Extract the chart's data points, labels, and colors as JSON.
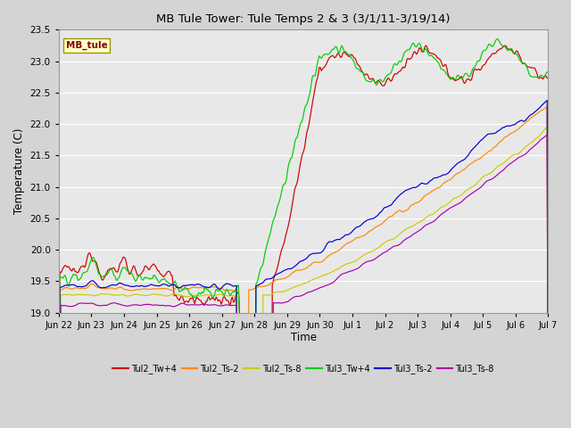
{
  "title": "MB Tule Tower: Tule Temps 2 & 3 (3/1/11-3/19/14)",
  "xlabel": "Time",
  "ylabel": "Temperature (C)",
  "ylim": [
    19.0,
    23.5
  ],
  "fig_bg": "#d4d4d4",
  "plot_bg": "#e8e8e8",
  "legend_label": "MB_tule",
  "series": [
    {
      "name": "Tul2_Tw+4",
      "color": "#cc0000"
    },
    {
      "name": "Tul2_Ts-2",
      "color": "#ff8800"
    },
    {
      "name": "Tul2_Ts-8",
      "color": "#cccc00"
    },
    {
      "name": "Tul3_Tw+4",
      "color": "#00cc00"
    },
    {
      "name": "Tul3_Ts-2",
      "color": "#0000cc"
    },
    {
      "name": "Tul3_Ts-8",
      "color": "#aa00aa"
    }
  ],
  "xtick_labels": [
    "Jun 22",
    "Jun 23",
    "Jun 24",
    "Jun 25",
    "Jun 26",
    "Jun 27",
    "Jun 28",
    "Jun 29",
    "Jun 30",
    "Jul 1",
    "Jul 2",
    "Jul 3",
    "Jul 4",
    "Jul 5",
    "Jul 6",
    "Jul 7"
  ]
}
